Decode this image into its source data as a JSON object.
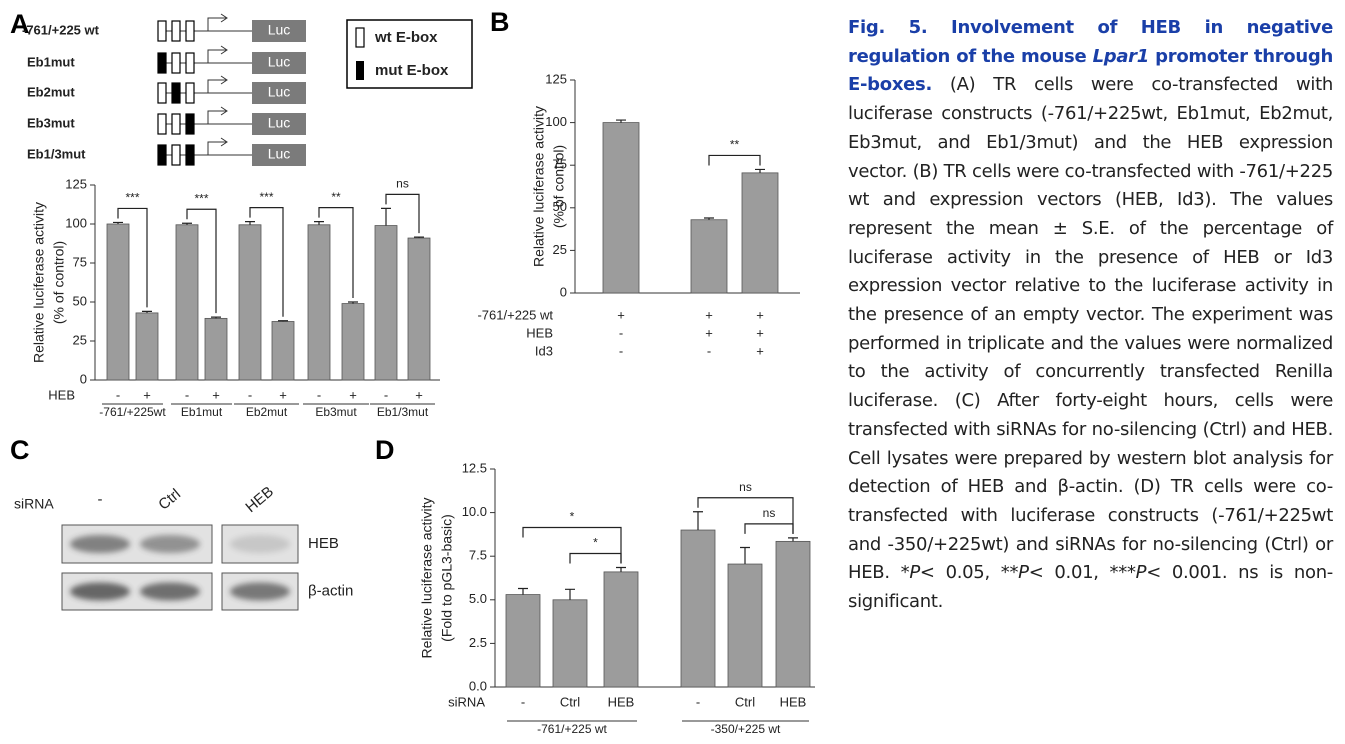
{
  "chart_data": [
    {
      "type": "bar",
      "panel": "A",
      "ylabel": [
        "Relative luciferase activity",
        "(% of control)"
      ],
      "row_label": "HEB",
      "categories": [
        "-",
        "+",
        "-",
        "+",
        "-",
        "+",
        "-",
        "+",
        "-",
        "+"
      ],
      "groups": [
        "-761/+225wt",
        "Eb1mut",
        "Eb2mut",
        "Eb3mut",
        "Eb1/3mut"
      ],
      "values": [
        100,
        43,
        99.5,
        39.5,
        99.5,
        37.5,
        99.5,
        49,
        99,
        91
      ],
      "errors": [
        1,
        1,
        1,
        0.8,
        2,
        0.5,
        2,
        1,
        11,
        0.6
      ],
      "color": "#9c9c9c",
      "ylim": [
        0,
        125
      ],
      "yticks": [
        0,
        25,
        50,
        75,
        100,
        125
      ],
      "significance": [
        {
          "pair": [
            0,
            1
          ],
          "label": "***"
        },
        {
          "pair": [
            2,
            3
          ],
          "label": "***"
        },
        {
          "pair": [
            4,
            5
          ],
          "label": "***"
        },
        {
          "pair": [
            6,
            7
          ],
          "label": "**"
        },
        {
          "pair": [
            8,
            9
          ],
          "label": "ns"
        }
      ]
    },
    {
      "type": "bar",
      "panel": "B",
      "ylabel": [
        "Relative luciferase activity",
        "(% of control)"
      ],
      "categories": [
        null,
        null,
        null
      ],
      "conditions": [
        {
          "label": "-761/+225 wt",
          "values": [
            "+",
            "+",
            "+"
          ]
        },
        {
          "label": "HEB",
          "values": [
            "-",
            "+",
            "+"
          ]
        },
        {
          "label": "Id3",
          "values": [
            "-",
            "-",
            "+"
          ]
        }
      ],
      "values": [
        100,
        43,
        70.5
      ],
      "errors": [
        1.5,
        1,
        2
      ],
      "color": "#9c9c9c",
      "ylim": [
        0,
        125
      ],
      "yticks": [
        0,
        25,
        50,
        75,
        100,
        125
      ],
      "significance": [
        {
          "pair": [
            1,
            2
          ],
          "label": "**"
        }
      ]
    },
    {
      "type": "bar",
      "panel": "D",
      "ylabel": [
        "Relative luciferase activity",
        "(Fold to pGL3-basic)"
      ],
      "row_label": "siRNA",
      "categories": [
        "-",
        "Ctrl",
        "HEB",
        "-",
        "Ctrl",
        "HEB"
      ],
      "groups": [
        "-761/+225 wt",
        "-350/+225 wt"
      ],
      "values": [
        5.3,
        5.0,
        6.6,
        9.0,
        7.05,
        8.35
      ],
      "errors": [
        0.35,
        0.6,
        0.25,
        1.05,
        0.95,
        0.2
      ],
      "color": "#9c9c9c",
      "ylim": [
        0,
        12.5
      ],
      "yticks": [
        {
          "value": 0,
          "label": "0.0"
        },
        2.5,
        {
          "value": 5,
          "label": "5.0"
        },
        7.5,
        {
          "value": 10,
          "label": "10.0"
        },
        12.5
      ],
      "significance": [
        {
          "pair": [
            0,
            2
          ],
          "label": "*"
        },
        {
          "pair": [
            1,
            2
          ],
          "label": "*"
        },
        {
          "pair": [
            3,
            5
          ],
          "label": "ns"
        },
        {
          "pair": [
            4,
            5
          ],
          "label": "ns"
        }
      ]
    }
  ],
  "panel_a_constructs": {
    "constructs": [
      "-761/+225 wt",
      "Eb1mut",
      "Eb2mut",
      "Eb3mut",
      "Eb1/3mut"
    ],
    "reporter": "Luc",
    "legend": [
      "wt E-box",
      "mut E-box"
    ]
  },
  "panel_c": {
    "panel": "C",
    "row_label": "siRNA",
    "lanes": [
      "-",
      "Ctrl",
      "HEB"
    ],
    "bands": [
      "HEB",
      "β-actin"
    ]
  },
  "caption": {
    "title": [
      "Fig. 5. Involvement of HEB in negative regulation of the mouse ",
      "Lpar1",
      " promoter through E-boxes."
    ],
    "body": [
      "(A) TR cells were co-transfected with luciferase constructs (-761/+225wt, Eb1mut, Eb2mut, Eb3mut, and Eb1/3mut) and the HEB expression vector. (B) TR cells were co-transfected with -761/+225 wt and expression vectors (HEB, Id3). The values represent the mean ± S.E. of the percentage of luciferase activity in the presence of HEB or Id3 expression vector relative to the luciferase activity in the presence of an empty vector. The experiment was performed in triplicate and the values were normalized to the activity of concurrently transfected Renilla luciferase. (C) After forty-eight hours, cells were transfected with siRNAs for no-silencing (Ctrl) and HEB. Cell lysates were prepared by western blot analysis for detection of HEB and β-actin. (D) TR cells were co-transfected with luciferase constructs (-761/+225wt and -350/+225wt) and siRNAs for no-silencing (Ctrl) or HEB. *",
      "P",
      "< 0.05, **",
      "P",
      "< 0.01, ***",
      "P",
      "< 0.001. ns is non-significant."
    ]
  }
}
